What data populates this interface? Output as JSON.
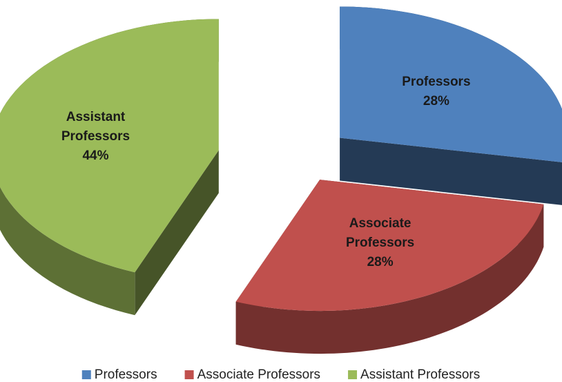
{
  "chart_data": {
    "type": "pie3d",
    "categories": [
      "Professors",
      "Associate Professors",
      "Assistant Professors"
    ],
    "values": [
      28,
      28,
      44
    ],
    "value_labels": [
      "28%",
      "28%",
      "44%"
    ],
    "colors": [
      "#4f81bd",
      "#c0504d",
      "#9bbb59"
    ],
    "legend": "bottom"
  }
}
